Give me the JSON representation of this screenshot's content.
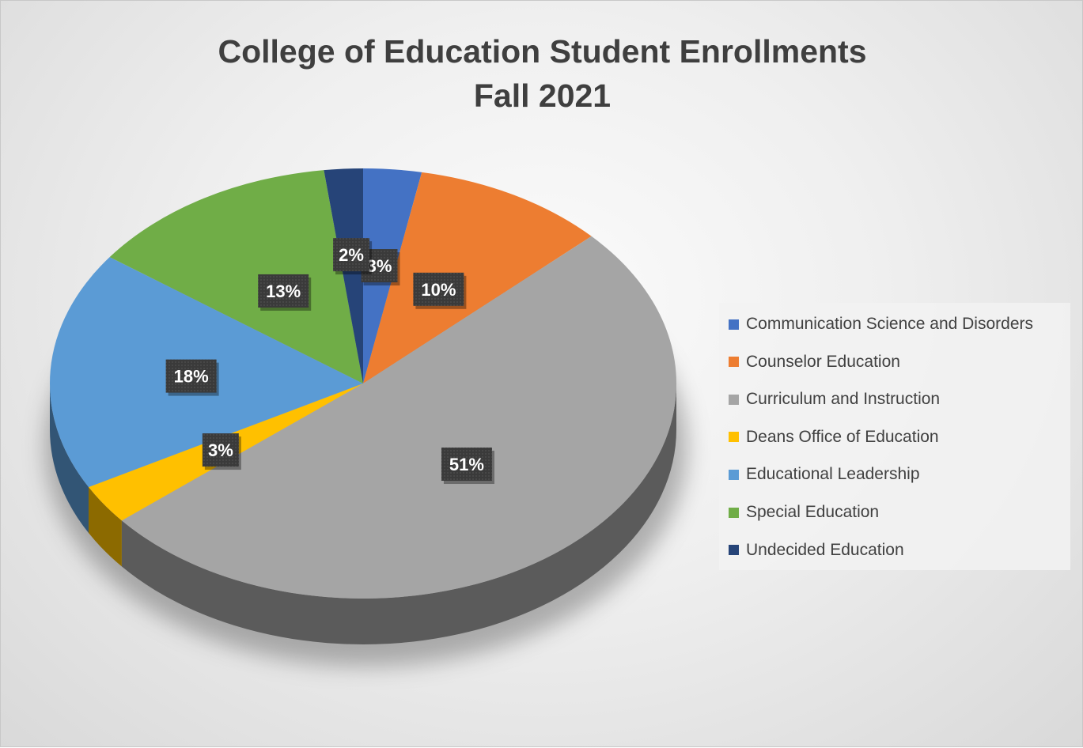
{
  "chart_data": {
    "type": "pie",
    "title": [
      "College of Education Student Enrollments",
      "Fall 2021"
    ],
    "legend_position": "right",
    "slices": [
      {
        "name": "Communication Science and Disorders",
        "value": 3,
        "label": "3%",
        "color": "#4472C4"
      },
      {
        "name": "Counselor Education",
        "value": 10,
        "label": "10%",
        "color": "#ED7D31"
      },
      {
        "name": "Curriculum and Instruction",
        "value": 51,
        "label": "51%",
        "color": "#A5A5A5"
      },
      {
        "name": "Deans Office of Education",
        "value": 3,
        "label": "3%",
        "color": "#FFC000"
      },
      {
        "name": "Educational Leadership",
        "value": 18,
        "label": "18%",
        "color": "#5B9BD5"
      },
      {
        "name": "Special Education",
        "value": 13,
        "label": "13%",
        "color": "#70AD47"
      },
      {
        "name": "Undecided Education",
        "value": 2,
        "label": "2%",
        "color": "#264478"
      }
    ]
  }
}
